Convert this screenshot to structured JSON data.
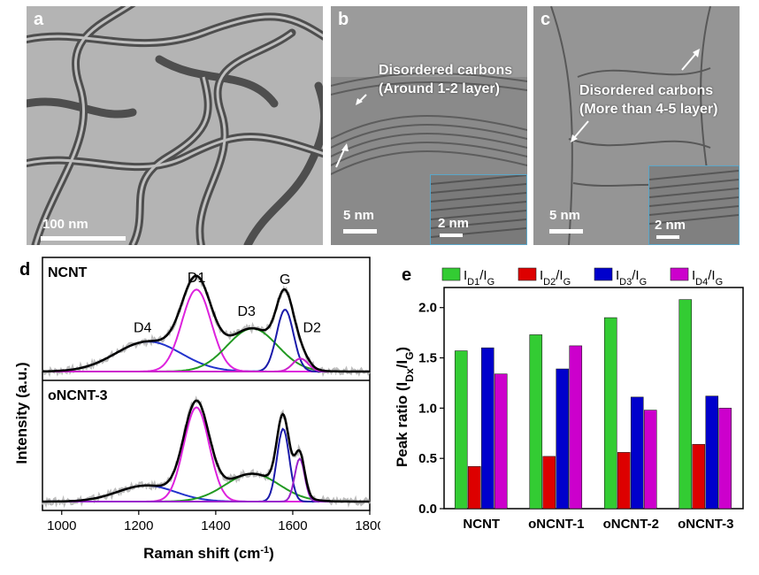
{
  "panels": {
    "a": {
      "label": "a",
      "scale": "100 nm"
    },
    "b": {
      "label": "b",
      "scale": "5 nm",
      "inset_scale": "2 nm",
      "annotation_line1": "Disordered carbons",
      "annotation_line2": "(Around 1-2 layer)"
    },
    "c": {
      "label": "c",
      "scale": "5 nm",
      "inset_scale": "2 nm",
      "annotation_line1": "Disordered carbons",
      "annotation_line2": "(More than 4-5 layer)"
    },
    "d": {
      "label": "d"
    },
    "e": {
      "label": "e"
    }
  },
  "colors": {
    "D1": "#33cc33",
    "D2": "#dd0000",
    "D3": "#0000cc",
    "D4": "#cc00cc",
    "fit": "#000000",
    "raw": "#bdbdbd"
  },
  "chart_data": [
    {
      "type": "line",
      "xlabel": "Raman shift (cm-1)",
      "ylabel": "Intensity (a.u.)",
      "xlim": [
        950,
        1800
      ],
      "xticks": [
        1000,
        1200,
        1400,
        1600,
        1800
      ],
      "peak_labels": [
        "D4",
        "D1",
        "D3",
        "G",
        "D2"
      ],
      "subplots": [
        {
          "name": "NCNT",
          "peaks": [
            {
              "label": "D4",
              "center": 1225,
              "amplitude": 0.3,
              "width": 85,
              "color": "#2233cc"
            },
            {
              "label": "D1",
              "center": 1350,
              "amplitude": 0.82,
              "width": 38,
              "color": "#dd22dd"
            },
            {
              "label": "D3",
              "center": 1495,
              "amplitude": 0.43,
              "width": 65,
              "color": "#229922"
            },
            {
              "label": "G",
              "center": 1580,
              "amplitude": 0.62,
              "width": 22,
              "color": "#1a1aaa"
            },
            {
              "label": "D2",
              "center": 1620,
              "amplitude": 0.13,
              "width": 20,
              "color": "#cc22cc"
            }
          ]
        },
        {
          "name": "oNCNT-3",
          "peaks": [
            {
              "label": "D4",
              "center": 1220,
              "amplitude": 0.15,
              "width": 75,
              "color": "#2233cc"
            },
            {
              "label": "D1",
              "center": 1350,
              "amplitude": 0.88,
              "width": 33,
              "color": "#dd22dd"
            },
            {
              "label": "D3",
              "center": 1495,
              "amplitude": 0.26,
              "width": 70,
              "color": "#229922"
            },
            {
              "label": "G",
              "center": 1575,
              "amplitude": 0.68,
              "width": 16,
              "color": "#1a1aaa"
            },
            {
              "label": "D2",
              "center": 1618,
              "amplitude": 0.4,
              "width": 13,
              "color": "#9922cc"
            }
          ]
        }
      ]
    },
    {
      "type": "bar",
      "xlabel": "",
      "ylabel": "Peak ratio (IDx/IG)",
      "ylim": [
        0,
        2.2
      ],
      "yticks": [
        0.0,
        0.5,
        1.0,
        1.5,
        2.0
      ],
      "categories": [
        "NCNT",
        "oNCNT-1",
        "oNCNT-2",
        "oNCNT-3"
      ],
      "series": [
        {
          "name": "ID1/IG",
          "label_main": "I",
          "label_sub1": "D1",
          "label_mid": "/I",
          "label_sub2": "G",
          "color": "#33cc33",
          "values": [
            1.57,
            1.73,
            1.9,
            2.08
          ]
        },
        {
          "name": "ID2/IG",
          "label_main": "I",
          "label_sub1": "D2",
          "label_mid": "/I",
          "label_sub2": "G",
          "color": "#dd0000",
          "values": [
            0.42,
            0.52,
            0.56,
            0.64
          ]
        },
        {
          "name": "ID3/IG",
          "label_main": "I",
          "label_sub1": "D3",
          "label_mid": "/I",
          "label_sub2": "G",
          "color": "#0000cc",
          "values": [
            1.6,
            1.39,
            1.11,
            1.12
          ]
        },
        {
          "name": "ID4/IG",
          "label_main": "I",
          "label_sub1": "D4",
          "label_mid": "/I",
          "label_sub2": "G",
          "color": "#cc00cc",
          "values": [
            1.34,
            1.62,
            0.98,
            1.0
          ]
        }
      ]
    }
  ]
}
